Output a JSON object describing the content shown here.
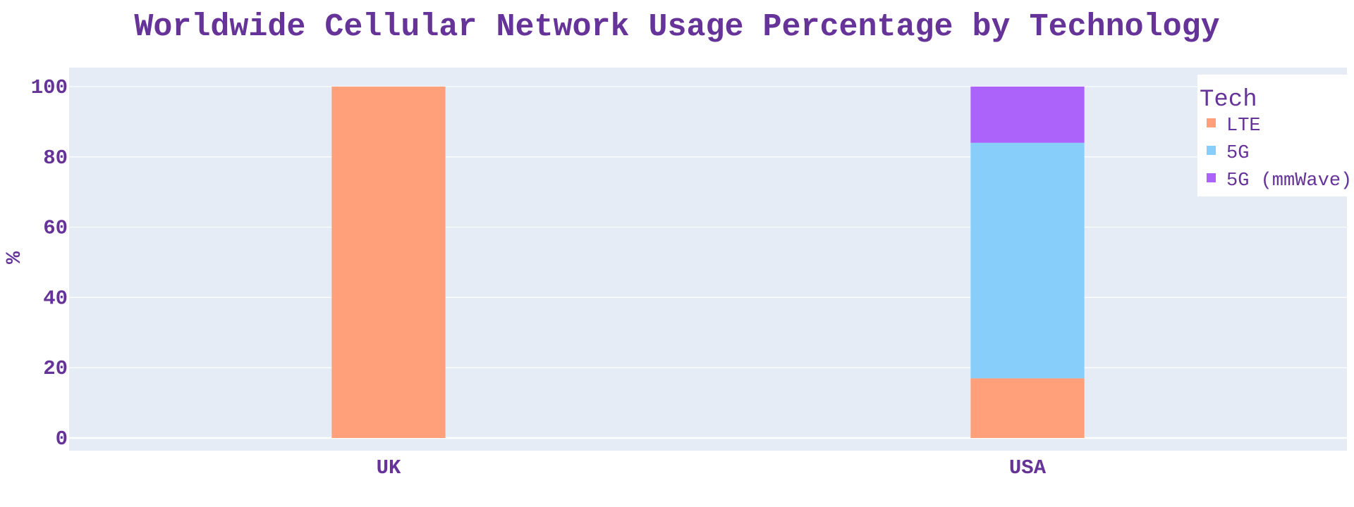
{
  "chart_data": {
    "type": "bar",
    "stacked": true,
    "title": "Worldwide Cellular Network Usage Percentage by Technology",
    "xlabel": "",
    "ylabel": "%",
    "categories": [
      "UK",
      "USA"
    ],
    "series": [
      {
        "name": "LTE",
        "values": [
          100,
          17
        ],
        "color": "#FFA07A"
      },
      {
        "name": "5G",
        "values": [
          0,
          67
        ],
        "color": "#87CEFA"
      },
      {
        "name": "5G (mmWave)",
        "values": [
          0,
          16
        ],
        "color": "#AB63FA"
      }
    ],
    "ylim": [
      -3.6,
      105.4
    ],
    "yticks": [
      0,
      20,
      40,
      60,
      80,
      100
    ],
    "ytick_labels": [
      "0",
      "20",
      "40",
      "60",
      "80",
      "100"
    ],
    "legend": {
      "title": "Tech",
      "position": "top-right"
    },
    "grid": true,
    "colors": {
      "text": "#663399",
      "plot_background": "#E5ECF6",
      "gridline": "#FFFFFF",
      "legend_background": "#FFFFFF"
    }
  }
}
